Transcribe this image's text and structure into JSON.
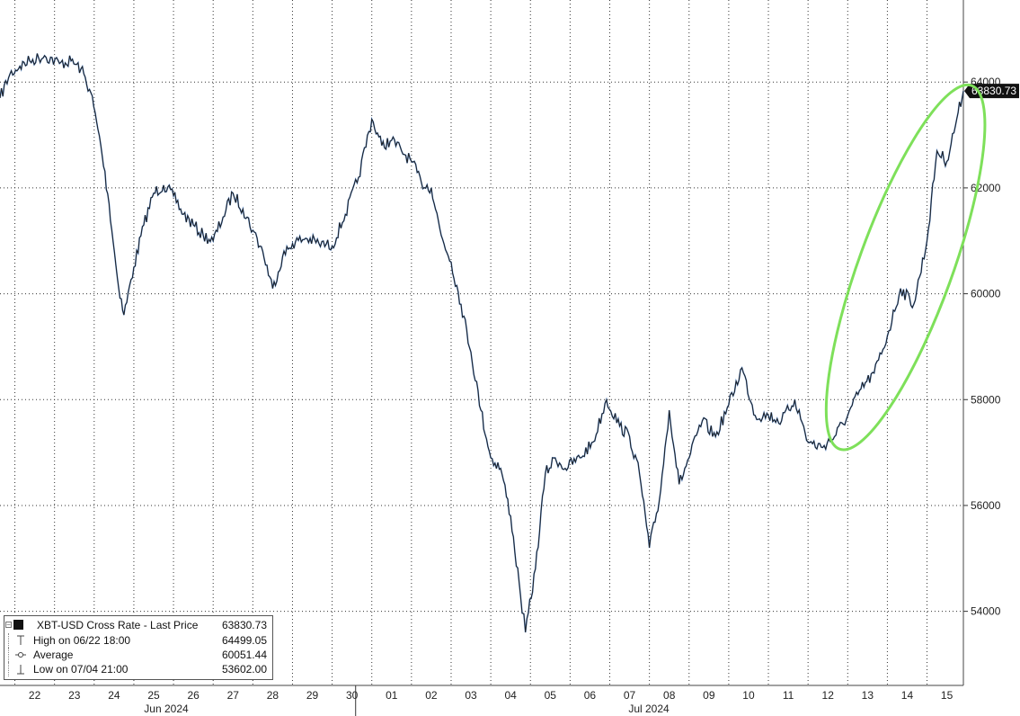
{
  "colors": {
    "price_line": "#1f1f1f",
    "price_line_highlight": "#3a7bd5",
    "grid": "#333333",
    "highlight_ellipse": "#7ee05a",
    "last_price_tag_bg": "#111111",
    "last_price_tag_text": "#ffffff"
  },
  "axis": {
    "y_ticks": [
      "64000",
      "62000",
      "60000",
      "58000",
      "56000",
      "54000"
    ],
    "x_ticks": [
      "22",
      "23",
      "24",
      "25",
      "26",
      "27",
      "28",
      "29",
      "30",
      "01",
      "02",
      "03",
      "04",
      "05",
      "06",
      "07",
      "08",
      "09",
      "10",
      "11",
      "12",
      "13",
      "14",
      "15"
    ],
    "months": [
      "Jun 2024",
      "Jul 2024"
    ],
    "last_price_tag": "63830.73"
  },
  "legend": {
    "title": "XBT-USD Cross Rate - Last Price",
    "title_value": "63830.73",
    "high_label": "High on 06/22 18:00",
    "high_value": "64499.05",
    "avg_label": "Average",
    "avg_value": "60051.44",
    "low_label": "Low on 07/04 21:00",
    "low_value": "53602.00"
  },
  "chart_data": {
    "type": "line",
    "title": "",
    "xlabel": "",
    "ylabel": "",
    "ylim": [
      52600,
      65550
    ],
    "x_range_days": [
      "2024-06-21T15:00",
      "2024-07-15T22:00"
    ],
    "y_axis_side": "right",
    "grid": "dotted",
    "legend_position": "bottom-left",
    "annotation": "green ellipse highlighting rally on Jul 13-15",
    "series": [
      {
        "name": "XBT-USD Cross Rate - Last Price",
        "x": [
          "2024-06-21T15:00",
          "2024-06-21T21:00",
          "2024-06-22T03:00",
          "2024-06-22T09:00",
          "2024-06-22T18:00",
          "2024-06-23T03:00",
          "2024-06-23T10:00",
          "2024-06-23T16:00",
          "2024-06-23T22:00",
          "2024-06-24T04:00",
          "2024-06-24T09:00",
          "2024-06-24T14:00",
          "2024-06-24T18:00",
          "2024-06-25T00:00",
          "2024-06-25T06:00",
          "2024-06-25T12:00",
          "2024-06-25T18:00",
          "2024-06-26T00:00",
          "2024-06-26T06:00",
          "2024-06-26T12:00",
          "2024-06-26T18:00",
          "2024-06-27T00:00",
          "2024-06-27T06:00",
          "2024-06-27T12:00",
          "2024-06-27T18:00",
          "2024-06-28T00:00",
          "2024-06-28T06:00",
          "2024-06-28T12:00",
          "2024-06-28T18:00",
          "2024-06-29T00:00",
          "2024-06-29T08:00",
          "2024-06-29T16:00",
          "2024-06-30T00:00",
          "2024-06-30T08:00",
          "2024-06-30T16:00",
          "2024-07-01T00:00",
          "2024-07-01T06:00",
          "2024-07-01T12:00",
          "2024-07-01T18:00",
          "2024-07-02T00:00",
          "2024-07-02T06:00",
          "2024-07-02T12:00",
          "2024-07-02T18:00",
          "2024-07-03T00:00",
          "2024-07-03T06:00",
          "2024-07-03T12:00",
          "2024-07-03T18:00",
          "2024-07-04T00:00",
          "2024-07-04T06:00",
          "2024-07-04T12:00",
          "2024-07-04T18:00",
          "2024-07-04T21:00",
          "2024-07-05T03:00",
          "2024-07-05T09:00",
          "2024-07-05T15:00",
          "2024-07-05T21:00",
          "2024-07-06T06:00",
          "2024-07-06T14:00",
          "2024-07-06T22:00",
          "2024-07-07T06:00",
          "2024-07-07T12:00",
          "2024-07-07T18:00",
          "2024-07-08T00:00",
          "2024-07-08T06:00",
          "2024-07-08T12:00",
          "2024-07-08T18:00",
          "2024-07-09T00:00",
          "2024-07-09T08:00",
          "2024-07-09T16:00",
          "2024-07-10T00:00",
          "2024-07-10T08:00",
          "2024-07-10T16:00",
          "2024-07-11T00:00",
          "2024-07-11T08:00",
          "2024-07-11T16:00",
          "2024-07-12T00:00",
          "2024-07-12T08:00",
          "2024-07-12T16:00",
          "2024-07-13T00:00",
          "2024-07-13T08:00",
          "2024-07-13T16:00",
          "2024-07-14T00:00",
          "2024-07-14T08:00",
          "2024-07-14T16:00",
          "2024-07-15T00:00",
          "2024-07-15T06:00",
          "2024-07-15T12:00",
          "2024-07-15T18:00",
          "2024-07-15T22:00"
        ],
        "values": [
          63700,
          64150,
          64300,
          64400,
          64499,
          64350,
          64400,
          64250,
          63800,
          62800,
          61700,
          60300,
          59600,
          60500,
          61300,
          61900,
          62050,
          61850,
          61500,
          61300,
          61100,
          61000,
          61450,
          61900,
          61600,
          61200,
          60800,
          60100,
          60700,
          60950,
          61050,
          60950,
          60900,
          61500,
          62200,
          63300,
          62800,
          62900,
          62700,
          62500,
          62100,
          62000,
          61100,
          60600,
          59800,
          58900,
          57800,
          56900,
          56700,
          55800,
          54300,
          53602,
          54800,
          56600,
          56900,
          56700,
          56900,
          57200,
          58000,
          57500,
          57300,
          56600,
          55200,
          56100,
          57800,
          56400,
          56900,
          57600,
          57300,
          57900,
          58600,
          57700,
          57700,
          57600,
          58000,
          57200,
          57100,
          57300,
          57700,
          58200,
          58500,
          59200,
          60100,
          59800,
          61000,
          62700,
          62500,
          63300,
          63830.73
        ]
      }
    ]
  }
}
